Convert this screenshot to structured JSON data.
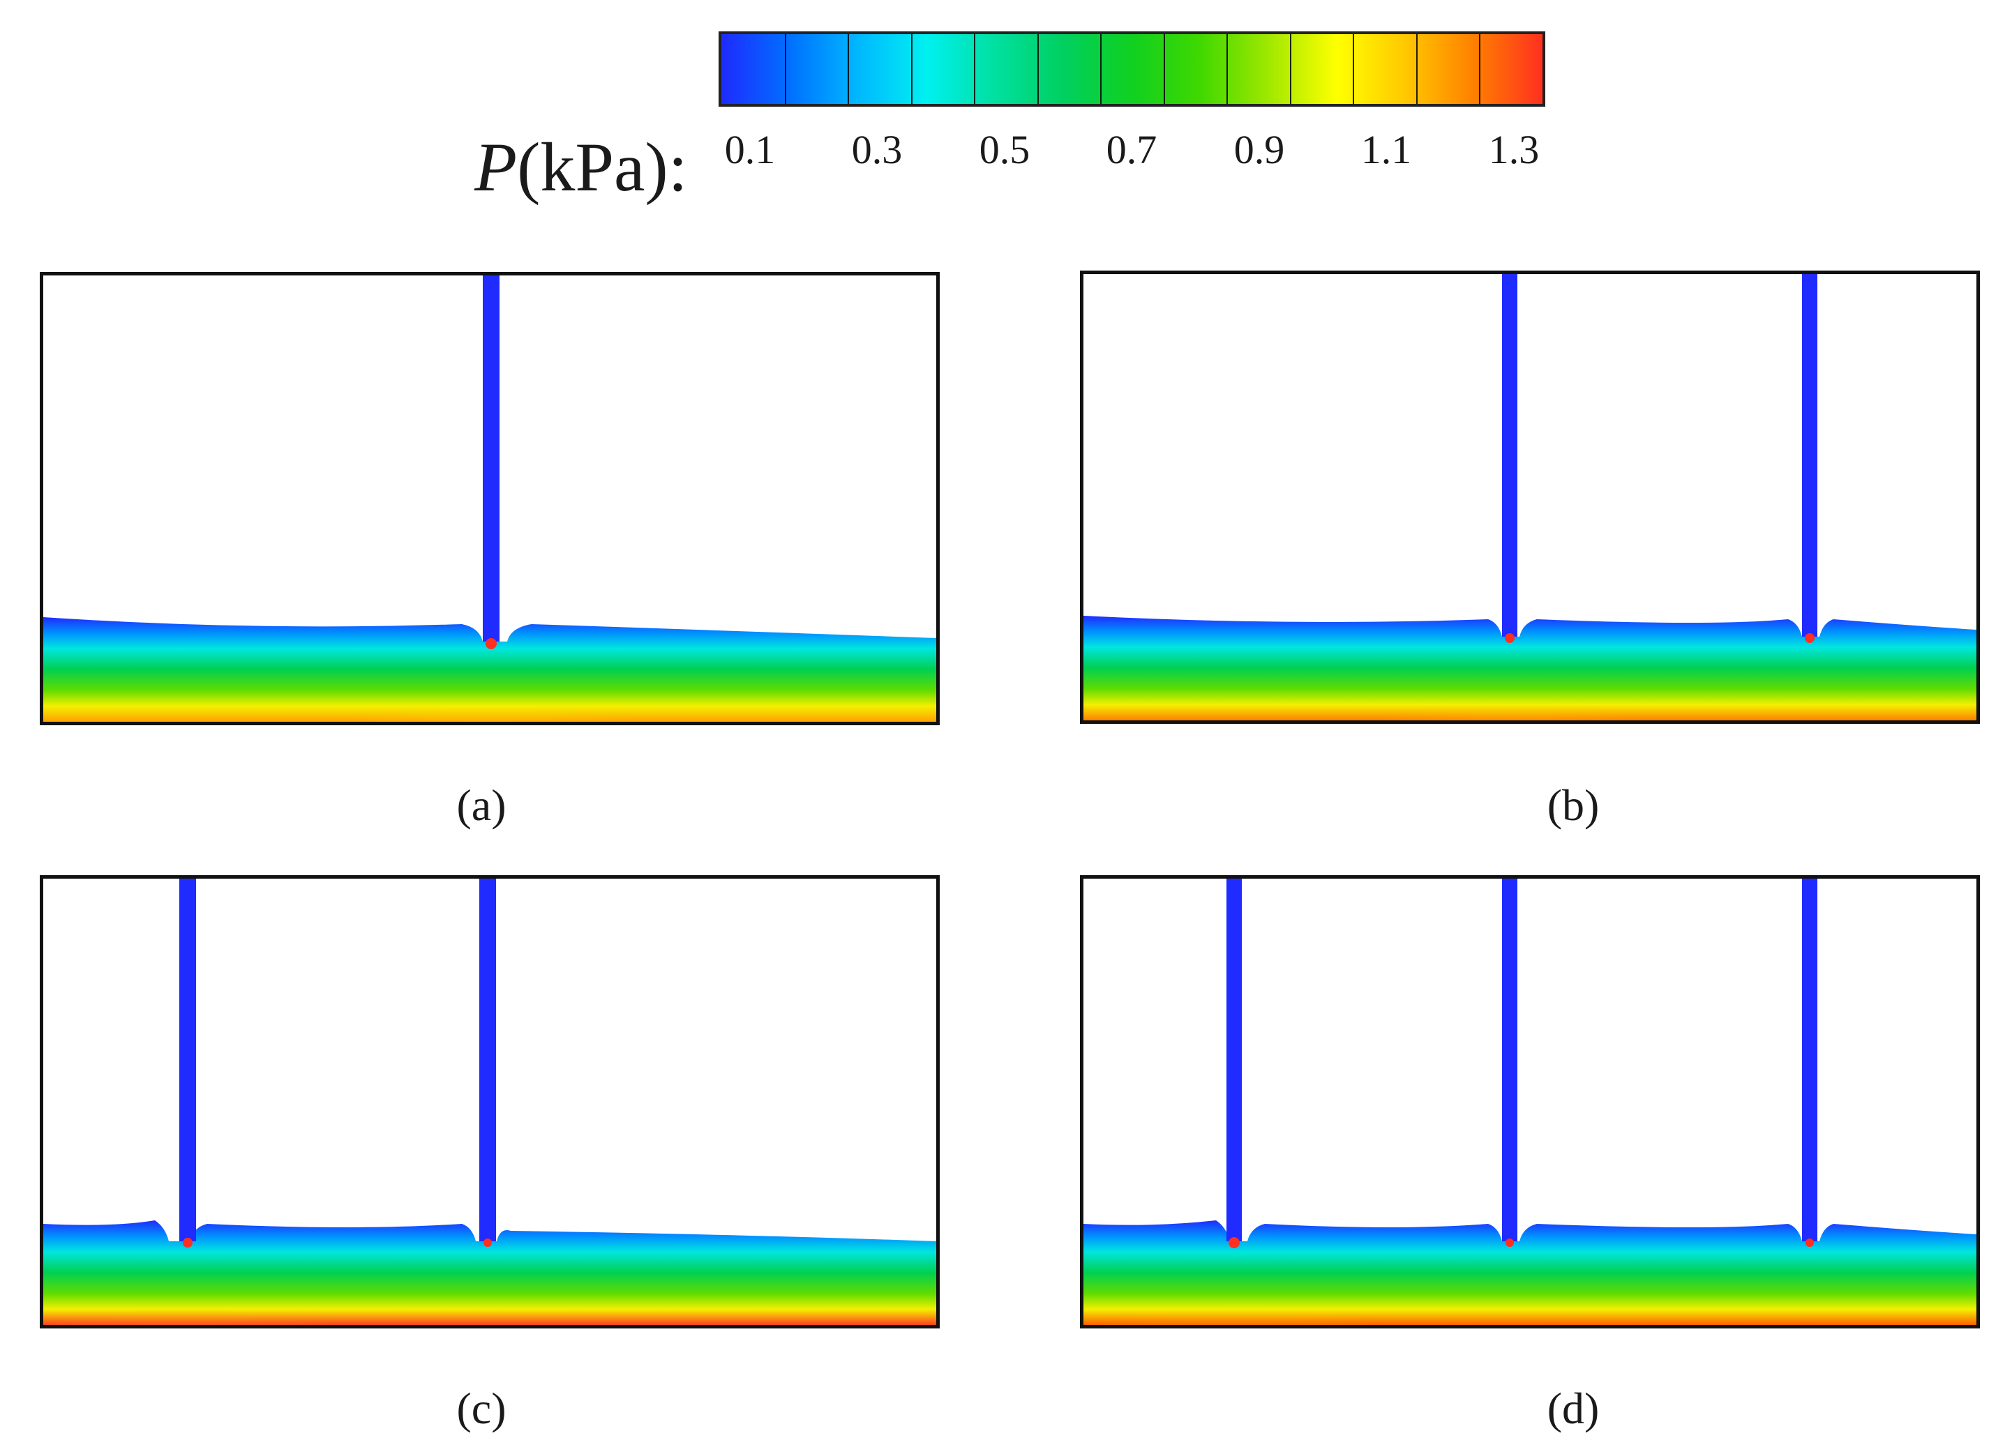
{
  "colorbar": {
    "label_symbol": "P",
    "label_unit": "(kPa):",
    "ticks": [
      "0.1",
      "0.3",
      "0.5",
      "0.7",
      "0.9",
      "1.1",
      "1.3"
    ],
    "range": [
      0.0,
      1.35
    ],
    "levels": 13,
    "stops": [
      "#1f2bff",
      "#0070ff",
      "#00b8ff",
      "#00f0f0",
      "#00e0a0",
      "#00d060",
      "#10d020",
      "#40d800",
      "#a0e800",
      "#ffff00",
      "#ffc800",
      "#ff8000",
      "#ff3020"
    ]
  },
  "panels": [
    {
      "id": "a",
      "caption": "(a)",
      "jets": 1
    },
    {
      "id": "b",
      "caption": "(b)",
      "jets": 2
    },
    {
      "id": "c",
      "caption": "(c)",
      "jets": 2
    },
    {
      "id": "d",
      "caption": "(d)",
      "jets": 3
    }
  ]
}
